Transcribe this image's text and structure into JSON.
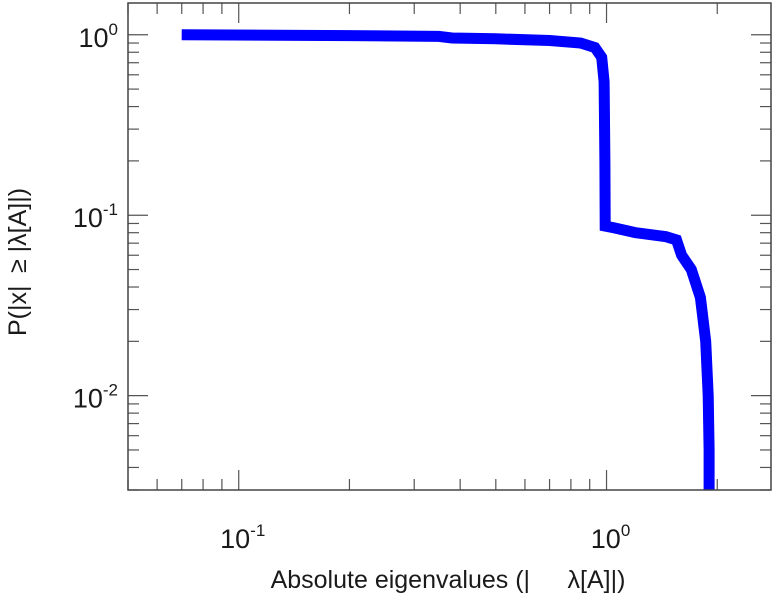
{
  "chart_data": {
    "type": "line",
    "xlabel": "Absolute eigenvalues (|   λ[A]|)",
    "ylabel": "P(|x| ≥ |λ[A]|)",
    "x_scale": "log",
    "y_scale": "log",
    "xlim": [
      0.05,
      2.8
    ],
    "ylim": [
      0.003,
      1.5
    ],
    "grid": false,
    "x_major_ticks": [
      {
        "value": 0.1,
        "label_base": "10",
        "label_exp": "-1"
      },
      {
        "value": 1,
        "label_base": "10",
        "label_exp": "0"
      }
    ],
    "y_major_ticks": [
      {
        "value": 1,
        "label_base": "10",
        "label_exp": "0"
      },
      {
        "value": 0.1,
        "label_base": "10",
        "label_exp": "-1"
      },
      {
        "value": 0.01,
        "label_base": "10",
        "label_exp": "-2"
      }
    ],
    "series": [
      {
        "color": "#0000ff",
        "points": [
          [
            0.07,
            1.0
          ],
          [
            0.2,
            0.99
          ],
          [
            0.35,
            0.98
          ],
          [
            0.38,
            0.96
          ],
          [
            0.5,
            0.95
          ],
          [
            0.7,
            0.93
          ],
          [
            0.85,
            0.9
          ],
          [
            0.93,
            0.85
          ],
          [
            0.97,
            0.75
          ],
          [
            0.985,
            0.55
          ],
          [
            0.99,
            0.2
          ],
          [
            0.992,
            0.087
          ],
          [
            1.05,
            0.085
          ],
          [
            1.2,
            0.08
          ],
          [
            1.45,
            0.076
          ],
          [
            1.55,
            0.073
          ],
          [
            1.6,
            0.06
          ],
          [
            1.7,
            0.05
          ],
          [
            1.8,
            0.035
          ],
          [
            1.86,
            0.02
          ],
          [
            1.89,
            0.01
          ],
          [
            1.9,
            0.005
          ],
          [
            1.9,
            0.003
          ]
        ]
      }
    ]
  }
}
